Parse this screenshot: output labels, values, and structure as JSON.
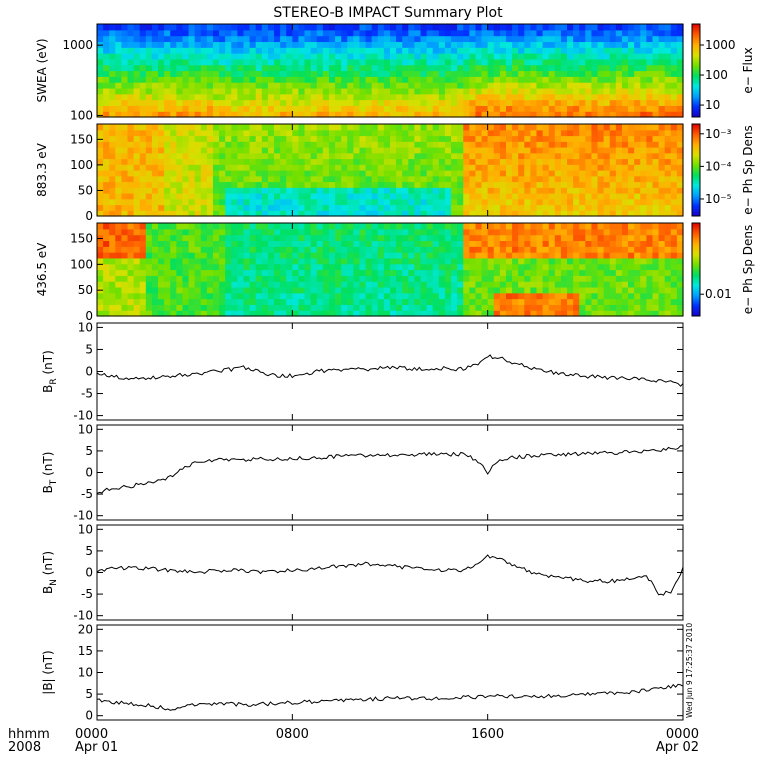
{
  "chart_data": {
    "type": "line",
    "title": "STEREO-B IMPACT Summary Plot",
    "x_axis": {
      "label_lines": [
        "hhmm",
        "2008"
      ],
      "ticks": [
        {
          "hour": 0,
          "time": "0000",
          "date": "Apr 01"
        },
        {
          "hour": 8,
          "time": "0800",
          "date": ""
        },
        {
          "hour": 16,
          "time": "1600",
          "date": ""
        },
        {
          "hour": 24,
          "time": "0000",
          "date": "Apr 02"
        }
      ],
      "range_hours": [
        0,
        24
      ]
    },
    "spectrograms": [
      {
        "ylabel": "SWEA (eV)",
        "yscale": "log",
        "ylim": [
          95,
          2000
        ],
        "yticks": [
          "100",
          "1000"
        ],
        "ytick_values": [
          100,
          1000
        ],
        "colorbar_label": "e− Flux",
        "colorbar_scale": "log",
        "colorbar_range": [
          4,
          5000
        ],
        "colorbar_ticks": [
          "10",
          "100",
          "1000"
        ],
        "colorbar_tick_values": [
          10,
          100,
          1000
        ]
      },
      {
        "ylabel": "883.3 eV",
        "yscale": "linear",
        "ylim": [
          0,
          180
        ],
        "yticks": [
          "0",
          "50",
          "100",
          "150"
        ],
        "ytick_values": [
          0,
          50,
          100,
          150
        ],
        "colorbar_label": "e− Ph Sp Dens",
        "colorbar_scale": "log",
        "colorbar_range": [
          3e-06,
          0.002
        ],
        "colorbar_ticks": [
          "10⁻⁵",
          "10⁻⁴",
          "10⁻³"
        ],
        "colorbar_tick_values": [
          1e-05,
          0.0001,
          0.001
        ]
      },
      {
        "ylabel": "436.5 eV",
        "yscale": "linear",
        "ylim": [
          0,
          180
        ],
        "yticks": [
          "0",
          "50",
          "100",
          "150"
        ],
        "ytick_values": [
          0,
          50,
          100,
          150
        ],
        "colorbar_label": "e− Ph Sp Dens",
        "colorbar_scale": "log",
        "colorbar_range": [
          0.004,
          0.2
        ],
        "colorbar_ticks": [
          "0.01"
        ],
        "colorbar_tick_values": [
          0.01
        ]
      }
    ],
    "series": [
      {
        "ylabel_main": "B",
        "ylabel_sub": "R",
        "ylabel_unit": " (nT)",
        "ylim": [
          -11,
          11
        ],
        "yticks": [
          "-10",
          "-5",
          "0",
          "5",
          "10"
        ],
        "ytick_values": [
          -10,
          -5,
          0,
          5,
          10
        ],
        "x": [
          0,
          1,
          2,
          3,
          4,
          5,
          6,
          7,
          8,
          9,
          10,
          11,
          12,
          13,
          14,
          15,
          15.5,
          16,
          16.5,
          17,
          18,
          19,
          20,
          21,
          22,
          23,
          24
        ],
        "values": [
          -0.5,
          -1.5,
          -1.5,
          -1,
          -0.5,
          0,
          1,
          -0.8,
          -1,
          0,
          0.5,
          0.5,
          1,
          0.5,
          0.8,
          0.5,
          1.5,
          3.5,
          3,
          2,
          0.5,
          -0.5,
          -1,
          -1.5,
          -1.5,
          -2,
          -3
        ]
      },
      {
        "ylabel_main": "B",
        "ylabel_sub": "T",
        "ylabel_unit": " (nT)",
        "ylim": [
          -11,
          11
        ],
        "yticks": [
          "-10",
          "-5",
          "0",
          "5",
          "10"
        ],
        "ytick_values": [
          -10,
          -5,
          0,
          5,
          10
        ],
        "x": [
          0,
          0.5,
          1,
          1.5,
          2,
          3,
          4,
          5,
          6,
          8,
          10,
          12,
          14,
          15,
          15.5,
          16,
          16.5,
          17,
          18,
          20,
          22,
          23,
          23.5,
          24
        ],
        "values": [
          -4.5,
          -4,
          -3.5,
          -3,
          -2.5,
          -1,
          2.5,
          3,
          3,
          3.2,
          3.8,
          4,
          4.2,
          4.3,
          3,
          0,
          3,
          3.5,
          4,
          4.3,
          4.8,
          5.2,
          5.5,
          6
        ]
      },
      {
        "ylabel_main": "B",
        "ylabel_sub": "N",
        "ylabel_unit": " (nT)",
        "ylim": [
          -11,
          11
        ],
        "yticks": [
          "-10",
          "-5",
          "0",
          "5",
          "10"
        ],
        "ytick_values": [
          -10,
          -5,
          0,
          5,
          10
        ],
        "x": [
          0,
          1,
          2,
          3,
          4,
          5,
          6,
          7,
          8,
          9,
          10,
          11,
          12,
          13,
          14,
          15,
          15.5,
          16,
          17,
          18,
          19,
          20,
          21,
          22,
          22.5,
          23,
          23.5,
          24
        ],
        "values": [
          0.5,
          1,
          1,
          0.5,
          0,
          0.5,
          0.5,
          0,
          0.5,
          1,
          1.5,
          2,
          1.5,
          1,
          0.5,
          0.5,
          2,
          4,
          2,
          -0.5,
          -1,
          -2,
          -2,
          -1.5,
          -0.5,
          -5,
          -4.5,
          1
        ]
      },
      {
        "ylabel_main": "|B|",
        "ylabel_sub": "",
        "ylabel_unit": " (nT)",
        "ylim": [
          -1,
          21
        ],
        "yticks": [
          "0",
          "5",
          "10",
          "15",
          "20"
        ],
        "ytick_values": [
          0,
          5,
          10,
          15,
          20
        ],
        "x": [
          0,
          1,
          2,
          3,
          4,
          5,
          6,
          8,
          10,
          12,
          14,
          16,
          18,
          20,
          22,
          23,
          24
        ],
        "values": [
          3.5,
          3,
          2.5,
          1.5,
          2.5,
          3,
          2.5,
          3,
          3.5,
          4,
          4,
          4.5,
          4.5,
          5,
          5.5,
          6.5,
          7
        ]
      }
    ],
    "timestamp_note": "Wed Jun 9 17:25:37 2010",
    "colors": {
      "line": "#000000",
      "axes": "#000000",
      "background": "#ffffff",
      "colormap": [
        "#1800c8",
        "#0030ff",
        "#00a0ff",
        "#00e8e0",
        "#00e060",
        "#70e000",
        "#d8e000",
        "#ffb000",
        "#ff6000",
        "#e00000"
      ]
    }
  }
}
